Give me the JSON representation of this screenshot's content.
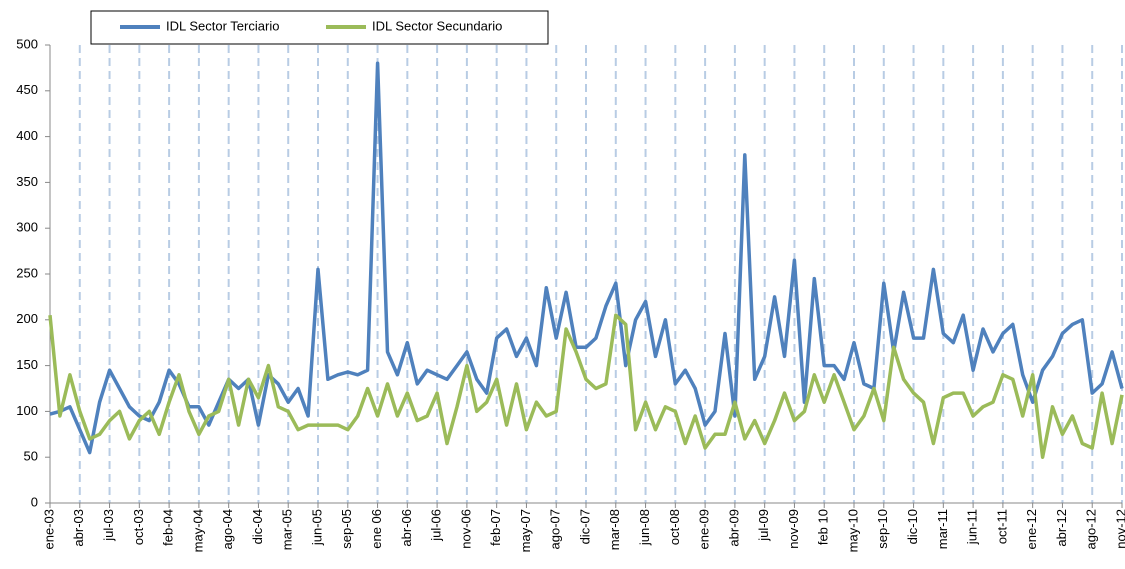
{
  "chart_data": {
    "type": "line",
    "categories": [
      "ene-03",
      null,
      null,
      "abr-03",
      null,
      null,
      "jul-03",
      null,
      null,
      "oct-03",
      null,
      null,
      "feb-04",
      null,
      null,
      "may-04",
      null,
      null,
      "ago-04",
      null,
      null,
      "dic-04",
      null,
      null,
      "mar-05",
      null,
      null,
      "jun-05",
      null,
      null,
      "sep-05",
      null,
      null,
      "ene 06",
      null,
      null,
      "abr-06",
      null,
      null,
      "jul-06",
      null,
      null,
      "nov-06",
      null,
      null,
      "feb-07",
      null,
      null,
      "may-07",
      null,
      null,
      "ago-07",
      null,
      null,
      "dic-07",
      null,
      null,
      "mar-08",
      null,
      null,
      "jun-08",
      null,
      null,
      "oct-08",
      null,
      null,
      "ene-09",
      null,
      null,
      "abr-09",
      null,
      null,
      "jul-09",
      null,
      null,
      "nov-09",
      null,
      null,
      "feb 10",
      null,
      null,
      "may-10",
      null,
      null,
      "sep-10",
      null,
      null,
      "dic-10",
      null,
      null,
      "mar-11",
      null,
      null,
      "jun-11",
      null,
      null,
      "oct-11",
      null,
      null,
      "ene-12",
      null,
      null,
      "abr-12",
      null,
      null,
      "ago-12",
      null,
      null,
      "nov-12"
    ],
    "series": [
      {
        "name": "IDL Sector Terciario",
        "color": "#4f81bd",
        "values": [
          97,
          100,
          105,
          80,
          55,
          110,
          145,
          125,
          105,
          95,
          90,
          110,
          145,
          130,
          105,
          105,
          85,
          110,
          135,
          125,
          135,
          85,
          140,
          130,
          110,
          125,
          95,
          255,
          135,
          140,
          143,
          140,
          145,
          480,
          165,
          140,
          175,
          130,
          145,
          140,
          135,
          150,
          165,
          135,
          120,
          180,
          190,
          160,
          180,
          150,
          235,
          180,
          230,
          170,
          170,
          180,
          215,
          240,
          150,
          200,
          220,
          160,
          200,
          130,
          145,
          125,
          85,
          100,
          185,
          95,
          380,
          135,
          160,
          225,
          160,
          265,
          110,
          245,
          150,
          150,
          135,
          175,
          130,
          125,
          240,
          165,
          230,
          180,
          180,
          255,
          185,
          175,
          205,
          145,
          190,
          165,
          185,
          195,
          140,
          110,
          145,
          160,
          185,
          195,
          200,
          120,
          130,
          165,
          125
        ]
      },
      {
        "name": "IDL Sector Secundario",
        "color": "#9bbb59",
        "values": [
          205,
          95,
          140,
          100,
          70,
          75,
          90,
          100,
          70,
          90,
          100,
          75,
          110,
          140,
          100,
          75,
          95,
          100,
          135,
          85,
          135,
          115,
          150,
          105,
          100,
          80,
          85,
          85,
          85,
          85,
          80,
          95,
          125,
          95,
          130,
          95,
          120,
          90,
          95,
          120,
          65,
          105,
          150,
          100,
          110,
          135,
          85,
          130,
          80,
          110,
          95,
          100,
          190,
          165,
          135,
          125,
          130,
          205,
          195,
          80,
          110,
          80,
          105,
          100,
          65,
          95,
          60,
          75,
          75,
          110,
          70,
          90,
          65,
          90,
          120,
          90,
          100,
          140,
          110,
          140,
          110,
          80,
          95,
          125,
          90,
          170,
          135,
          120,
          110,
          65,
          115,
          120,
          120,
          95,
          105,
          110,
          140,
          135,
          95,
          140,
          50,
          105,
          75,
          95,
          65,
          60,
          120,
          65,
          118
        ]
      }
    ],
    "ylim": [
      0,
      500
    ],
    "yticks": [
      0,
      50,
      100,
      150,
      200,
      250,
      300,
      350,
      400,
      450,
      500
    ],
    "grid": "x",
    "legend": "top"
  }
}
